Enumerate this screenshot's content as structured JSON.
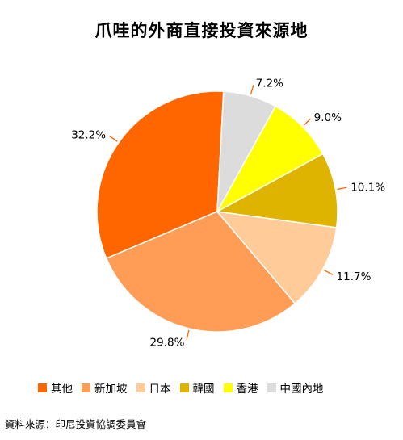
{
  "chart_data": {
    "type": "pie",
    "title": "爪哇的外商直接投資來源地",
    "slices": [
      {
        "label": "其他",
        "value": 32.2,
        "display": "32.2%",
        "color": "#ff6600"
      },
      {
        "label": "新加坡",
        "value": 29.8,
        "display": "29.8%",
        "color": "#ff9c55"
      },
      {
        "label": "日本",
        "value": 11.7,
        "display": "11.7%",
        "color": "#ffcc99"
      },
      {
        "label": "韓國",
        "value": 10.1,
        "display": "10.1%",
        "color": "#dfb400"
      },
      {
        "label": "香港",
        "value": 9.0,
        "display": "9.0%",
        "color": "#ffff00"
      },
      {
        "label": "中國內地",
        "value": 7.2,
        "display": "7.2%",
        "color": "#dcdcdc"
      }
    ],
    "legend_position": "bottom"
  },
  "source": "資料來源：印尼投資協調委員會"
}
